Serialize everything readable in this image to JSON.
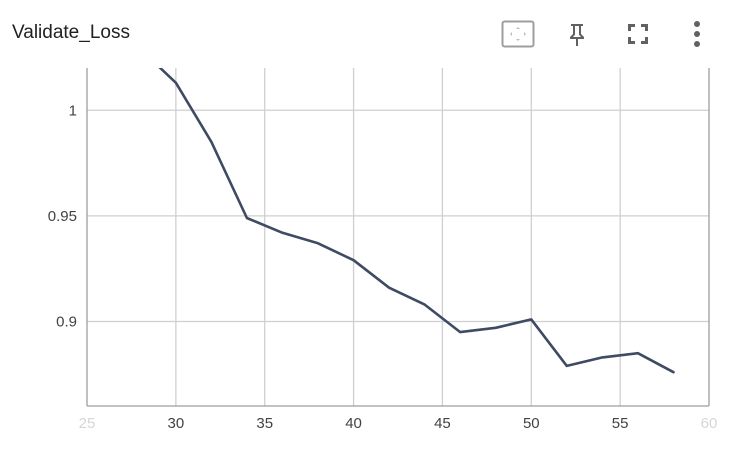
{
  "header": {
    "title": "Validate_Loss",
    "buttons": [
      {
        "name": "fit-domain-button",
        "icon": "fit-to-data-icon"
      },
      {
        "name": "pin-button",
        "icon": "pin-icon"
      },
      {
        "name": "fullscreen-button",
        "icon": "fullscreen-icon"
      },
      {
        "name": "more-menu-button",
        "icon": "more-vert-icon"
      }
    ]
  },
  "colors": {
    "line": "#3f4a63",
    "grid": "#cfcfcf",
    "axis": "#9e9e9e",
    "icon": "#616161"
  },
  "chart_data": {
    "type": "line",
    "title": "Validate_Loss",
    "xlabel": "",
    "ylabel": "",
    "xlim": [
      25,
      60
    ],
    "ylim": [
      0.86,
      1.02
    ],
    "x_ticks": [
      25,
      30,
      35,
      40,
      45,
      50,
      55,
      60
    ],
    "x_tick_labels": [
      "25",
      "30",
      "35",
      "40",
      "45",
      "50",
      "55",
      "60"
    ],
    "x_tick_faded": [
      true,
      false,
      false,
      false,
      false,
      false,
      false,
      true
    ],
    "y_ticks": [
      0.9,
      0.95,
      1
    ],
    "y_tick_labels": [
      "0.9",
      "0.95",
      "1"
    ],
    "grid": true,
    "series": [
      {
        "x": [
          29,
          30,
          32,
          34,
          36,
          38,
          40,
          42,
          44,
          46,
          48,
          50,
          52,
          54,
          56,
          58
        ],
        "values": [
          1.021,
          1.013,
          0.985,
          0.949,
          0.942,
          0.937,
          0.929,
          0.916,
          0.908,
          0.895,
          0.897,
          0.901,
          0.879,
          0.883,
          0.885,
          0.876
        ]
      }
    ]
  }
}
